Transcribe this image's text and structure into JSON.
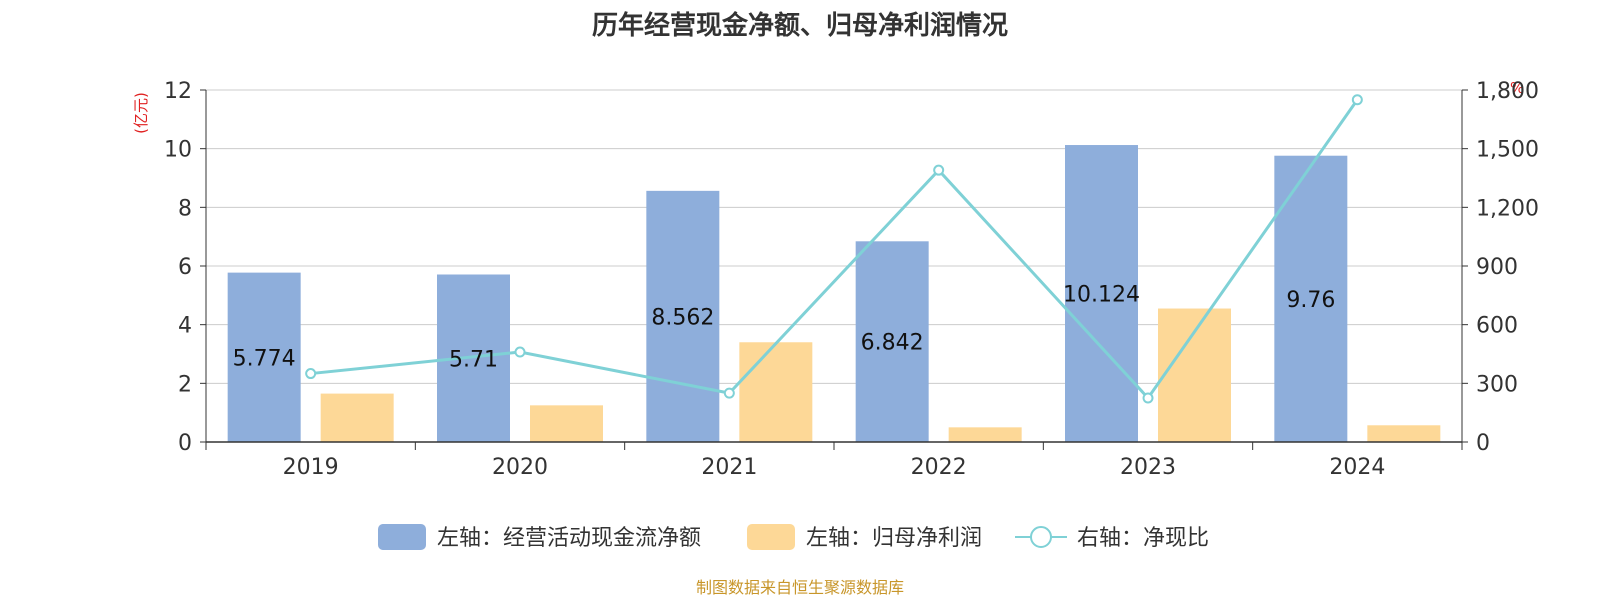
{
  "chart_data": {
    "type": "bar",
    "title": "历年经营现金净额、归母净利润情况",
    "categories": [
      "2019",
      "2020",
      "2021",
      "2022",
      "2023",
      "2024"
    ],
    "y_left": {
      "unit": "(亿元)",
      "ylim": [
        0,
        12
      ],
      "ticks": [
        "0",
        "2",
        "4",
        "6",
        "8",
        "10",
        "12"
      ]
    },
    "y_right": {
      "unit": "%",
      "ylim": [
        0,
        1800
      ],
      "ticks": [
        "0",
        "300",
        "600",
        "900",
        "1,200",
        "1,500",
        "1,800"
      ]
    },
    "series": [
      {
        "name": "左轴：经营活动现金流净额",
        "type": "bar",
        "axis": "left",
        "color": "#8eaedb",
        "values": [
          5.774,
          5.71,
          8.562,
          6.842,
          10.124,
          9.76
        ],
        "labels": [
          "5.774",
          "5.71",
          "8.562",
          "6.842",
          "10.124",
          "9.76"
        ]
      },
      {
        "name": "左轴：归母净利润",
        "type": "bar",
        "axis": "left",
        "color": "#fdd897",
        "values": [
          1.65,
          1.25,
          3.4,
          0.5,
          4.55,
          0.57
        ]
      },
      {
        "name": "右轴：净现比",
        "type": "line",
        "axis": "right",
        "color": "#7fd1d6",
        "values": [
          350,
          460,
          250,
          1390,
          225,
          1750
        ]
      }
    ],
    "grid": true,
    "legend_position": "bottom"
  },
  "footer": "制图数据来自恒生聚源数据库"
}
